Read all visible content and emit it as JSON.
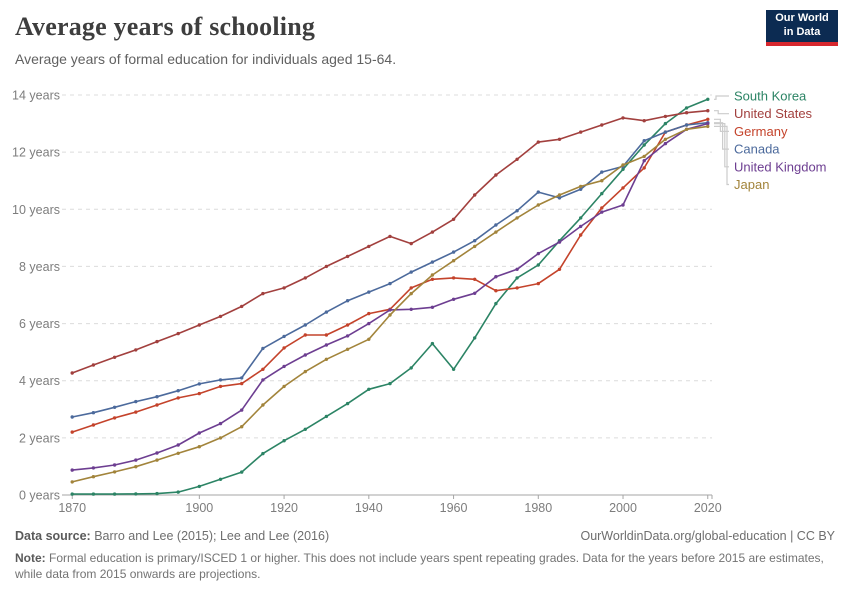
{
  "header": {
    "title": "Average years of schooling",
    "subtitle": "Average years of formal education for individuals aged 15-64.",
    "logo_line1": "Our World",
    "logo_line2": "in Data"
  },
  "footer": {
    "datasource_label": "Data source:",
    "datasource_value": " Barro and Lee (2015); Lee and Lee (2016)",
    "link": "OurWorldinData.org/global-education | CC BY",
    "note_label": "Note:",
    "note_text": " Formal education is primary/ISCED 1 or higher. This does not include years spent repeating grades. Data for the years before 2015 are estimates, while data from 2015 onwards are projections."
  },
  "chart_data": {
    "type": "line",
    "title": "Average years of schooling",
    "subtitle": "Average years of formal education for individuals aged 15-64.",
    "grid": "horizontal-dashed",
    "legend_position": "right",
    "xlabel": "",
    "ylabel": "years",
    "xlim": [
      1869,
      2021
    ],
    "ylim": [
      0,
      14
    ],
    "xticks": [
      1870,
      1900,
      1920,
      1940,
      1960,
      1980,
      2000,
      2020
    ],
    "yticks": [
      0,
      2,
      4,
      6,
      8,
      10,
      12,
      14
    ],
    "ytick_labels": [
      "0 years",
      "2 years",
      "4 years",
      "6 years",
      "8 years",
      "10 years",
      "12 years",
      "14 years"
    ],
    "x": [
      1870,
      1875,
      1880,
      1885,
      1890,
      1895,
      1900,
      1905,
      1910,
      1915,
      1920,
      1925,
      1930,
      1935,
      1940,
      1945,
      1950,
      1955,
      1960,
      1965,
      1970,
      1975,
      1980,
      1985,
      1990,
      1995,
      2000,
      2005,
      2010,
      2015,
      2020
    ],
    "series": [
      {
        "name": "South Korea",
        "color": "#2c8465",
        "values": [
          0.03,
          0.03,
          0.03,
          0.04,
          0.05,
          0.1,
          0.3,
          0.55,
          0.8,
          1.45,
          1.9,
          2.3,
          2.75,
          3.2,
          3.7,
          3.9,
          4.45,
          5.3,
          4.4,
          5.5,
          6.7,
          7.6,
          8.05,
          8.9,
          9.7,
          10.55,
          11.4,
          12.25,
          13.0,
          13.55,
          13.85
        ]
      },
      {
        "name": "United States",
        "color": "#a2403e",
        "values": [
          4.27,
          4.55,
          4.82,
          5.08,
          5.37,
          5.65,
          5.95,
          6.25,
          6.6,
          7.05,
          7.25,
          7.6,
          8.0,
          8.35,
          8.7,
          9.05,
          8.8,
          9.2,
          9.65,
          10.5,
          11.2,
          11.75,
          12.35,
          12.45,
          12.7,
          12.95,
          13.2,
          13.1,
          13.25,
          13.38,
          13.45
        ]
      },
      {
        "name": "Germany",
        "color": "#c4432b",
        "values": [
          2.2,
          2.45,
          2.7,
          2.9,
          3.15,
          3.4,
          3.55,
          3.8,
          3.9,
          4.4,
          5.15,
          5.6,
          5.6,
          5.95,
          6.35,
          6.5,
          7.25,
          7.55,
          7.6,
          7.55,
          7.15,
          7.25,
          7.4,
          7.9,
          9.1,
          10.05,
          10.75,
          11.45,
          12.7,
          12.95,
          13.15
        ]
      },
      {
        "name": "Canada",
        "color": "#4c6a9c",
        "values": [
          2.73,
          2.88,
          3.07,
          3.27,
          3.44,
          3.65,
          3.89,
          4.03,
          4.1,
          5.13,
          5.55,
          5.95,
          6.4,
          6.8,
          7.1,
          7.4,
          7.8,
          8.15,
          8.5,
          8.9,
          9.45,
          9.95,
          10.6,
          10.4,
          10.7,
          11.3,
          11.5,
          12.4,
          12.7,
          12.95,
          13.03
        ]
      },
      {
        "name": "United Kingdom",
        "color": "#6d3e91",
        "values": [
          0.87,
          0.95,
          1.05,
          1.22,
          1.47,
          1.75,
          2.17,
          2.5,
          2.97,
          4.03,
          4.5,
          4.9,
          5.25,
          5.57,
          6.0,
          6.48,
          6.5,
          6.57,
          6.85,
          7.06,
          7.64,
          7.9,
          8.45,
          8.85,
          9.4,
          9.9,
          10.15,
          11.7,
          12.3,
          12.8,
          13.0
        ]
      },
      {
        "name": "Japan",
        "color": "#a2843b",
        "values": [
          0.46,
          0.64,
          0.81,
          0.99,
          1.22,
          1.46,
          1.69,
          2.0,
          2.39,
          3.15,
          3.8,
          4.32,
          4.75,
          5.1,
          5.45,
          6.3,
          7.05,
          7.7,
          8.2,
          8.7,
          9.2,
          9.7,
          10.15,
          10.5,
          10.8,
          11.0,
          11.55,
          11.85,
          12.45,
          12.8,
          12.9
        ]
      }
    ]
  }
}
